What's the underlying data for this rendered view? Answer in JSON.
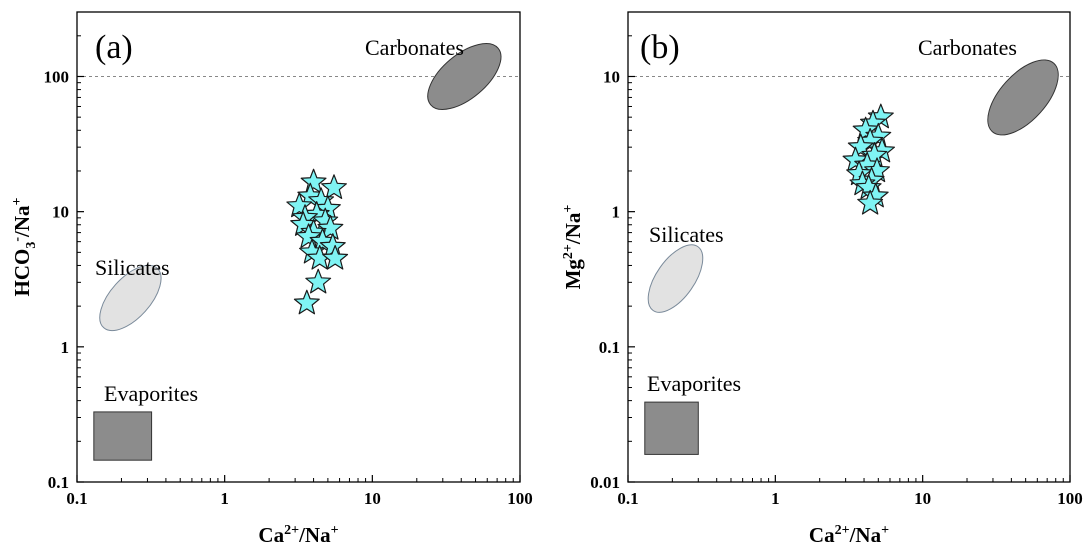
{
  "chart_data": [
    {
      "type": "scatter",
      "panel_label": "(a)",
      "xlabel": {
        "base": "Ca",
        "sup": "2+",
        "rest": "/Na",
        "sup2": "+"
      },
      "ylabel": {
        "base": "HCO",
        "sub": "3",
        "sup": "-",
        "rest": "/Na",
        "sup2": "+"
      },
      "x_scale": "log",
      "y_scale": "log",
      "xlim": [
        0.1,
        100
      ],
      "ylim": [
        0.1,
        300
      ],
      "x_ticks": [
        0.1,
        1,
        10,
        100
      ],
      "x_tick_labels": [
        "0.1",
        "1",
        "10",
        "100"
      ],
      "y_ticks": [
        0.1,
        1,
        10,
        100
      ],
      "y_tick_labels": [
        "0.1",
        "1",
        "10",
        "100"
      ],
      "reference_line_y": 100,
      "regions": [
        {
          "name": "Carbonates",
          "shape": "ellipse",
          "color": "#8c8c8c",
          "cx": 42,
          "cy": 100
        },
        {
          "name": "Silicates",
          "shape": "ellipse",
          "color": "#e2e2e2",
          "cx": 0.23,
          "cy": 2.3
        },
        {
          "name": "Evaporites",
          "shape": "rectangle",
          "color": "#8c8c8c",
          "x": [
            0.13,
            0.32
          ],
          "y": [
            0.145,
            0.33
          ]
        }
      ],
      "series": [
        {
          "marker": "star",
          "color": "#7ff4f4",
          "points": [
            [
              4.0,
              16.5
            ],
            [
              5.5,
              15
            ],
            [
              3.8,
              13
            ],
            [
              4.5,
              12
            ],
            [
              3.2,
              11
            ],
            [
              5.0,
              10.5
            ],
            [
              4.2,
              9.5
            ],
            [
              3.5,
              9
            ],
            [
              4.8,
              8.5
            ],
            [
              3.4,
              8
            ],
            [
              5.2,
              7.5
            ],
            [
              4.0,
              7
            ],
            [
              3.7,
              6.5
            ],
            [
              4.6,
              6
            ],
            [
              5.4,
              5.5
            ],
            [
              3.9,
              5
            ],
            [
              4.4,
              4.5
            ],
            [
              5.6,
              4.5
            ],
            [
              4.3,
              3
            ],
            [
              3.6,
              2.1
            ]
          ]
        }
      ]
    },
    {
      "type": "scatter",
      "panel_label": "(b)",
      "xlabel": {
        "base": "Ca",
        "sup": "2+",
        "rest": "/Na",
        "sup2": "+"
      },
      "ylabel": {
        "base": "Mg",
        "sup": "2+",
        "rest": "/Na",
        "sup2": "+"
      },
      "x_scale": "log",
      "y_scale": "log",
      "xlim": [
        0.1,
        100
      ],
      "ylim": [
        0.01,
        30
      ],
      "x_ticks": [
        0.1,
        1,
        10,
        100
      ],
      "x_tick_labels": [
        "0.1",
        "1",
        "10",
        "100"
      ],
      "y_ticks": [
        0.01,
        0.1,
        1,
        10
      ],
      "y_tick_labels": [
        "0.01",
        "0.1",
        "1",
        "10"
      ],
      "reference_line_y": 10,
      "regions": [
        {
          "name": "Carbonates",
          "shape": "ellipse",
          "color": "#8c8c8c",
          "cx": 48,
          "cy": 7
        },
        {
          "name": "Silicates",
          "shape": "ellipse",
          "color": "#e2e2e2",
          "cx": 0.21,
          "cy": 0.32
        },
        {
          "name": "Evaporites",
          "shape": "rectangle",
          "color": "#8c8c8c",
          "x": [
            0.13,
            0.3
          ],
          "y": [
            0.016,
            0.039
          ]
        }
      ],
      "series": [
        {
          "marker": "star",
          "color": "#7ff4f4",
          "points": [
            [
              5.2,
              5.0
            ],
            [
              4.6,
              4.5
            ],
            [
              4.1,
              4.0
            ],
            [
              5.0,
              3.6
            ],
            [
              4.4,
              3.3
            ],
            [
              3.8,
              3.0
            ],
            [
              5.3,
              2.8
            ],
            [
              4.7,
              2.6
            ],
            [
              3.5,
              2.4
            ],
            [
              4.2,
              2.2
            ],
            [
              4.9,
              2.0
            ],
            [
              3.7,
              1.9
            ],
            [
              4.5,
              1.7
            ],
            [
              3.9,
              1.6
            ],
            [
              4.3,
              1.5
            ],
            [
              4.8,
              1.3
            ],
            [
              4.4,
              1.15
            ]
          ]
        }
      ]
    }
  ]
}
